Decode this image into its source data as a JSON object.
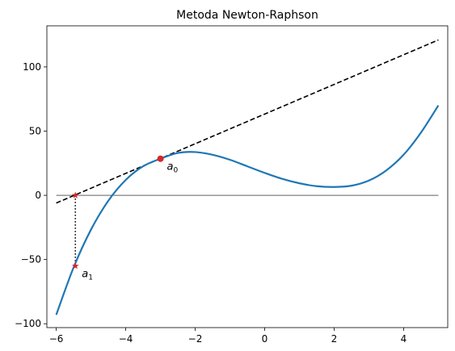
{
  "chart_data": {
    "type": "line",
    "title": "Metoda Newton-Raphson",
    "xlabel": "",
    "ylabel": "",
    "xlim": [
      -6.27,
      5.27
    ],
    "ylim": [
      -103,
      132
    ],
    "xticks": [
      -6,
      -4,
      -2,
      0,
      2,
      4
    ],
    "yticks": [
      -100,
      -50,
      0,
      50,
      100
    ],
    "grid": false,
    "legend": "none",
    "series": [
      {
        "style": "solid",
        "color": "#1f77b4",
        "x": [
          -6,
          -5.5,
          -5,
          -4.5,
          -4,
          -3.5,
          -3,
          -2.5,
          -2,
          -1.5,
          -1,
          -0.5,
          0,
          0.5,
          1,
          1.5,
          2,
          2.5,
          3,
          3.5,
          4,
          4.5,
          5
        ],
        "y": [
          -93,
          -56.1,
          -26.7,
          -4.2,
          12,
          22.6,
          28.5,
          33.0,
          33.7,
          31.6,
          27.7,
          22.6,
          17.5,
          12.9,
          9.4,
          7.1,
          6.5,
          7.5,
          11.5,
          19.4,
          31.6,
          48.9,
          70
        ]
      },
      {
        "style": "dashed",
        "color": "#000000",
        "x": [
          -6,
          5
        ],
        "y": [
          -6,
          121
        ]
      },
      {
        "style": "solid-thin",
        "color": "#000000",
        "x": [
          -6,
          5
        ],
        "y": [
          0,
          0
        ]
      },
      {
        "style": "dotted",
        "color": "#000000",
        "x": [
          -5.45,
          -5.45
        ],
        "y": [
          0,
          -55
        ]
      }
    ],
    "points": [
      {
        "marker": "circle",
        "color": "#d62728",
        "x": -3,
        "y": 28.5
      },
      {
        "marker": "star",
        "color": "#d62728",
        "x": -5.45,
        "y": 0
      },
      {
        "marker": "star",
        "color": "#d62728",
        "x": -5.45,
        "y": -55
      }
    ],
    "annotations": [
      {
        "base": "a",
        "sub": "0",
        "x": -3,
        "y": 28.5
      },
      {
        "base": "a",
        "sub": "1",
        "x": -5.45,
        "y": -55
      }
    ]
  }
}
